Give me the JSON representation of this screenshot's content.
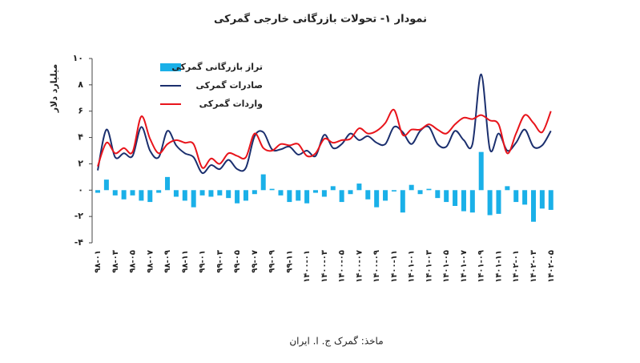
{
  "chart_data": {
    "type": "combo",
    "title": "نمودار ۱- تحولات بازرگانی خارجی گمرکی",
    "y_label": "میلیارد دلار",
    "source": "ماخذ: گمرک ج. ا. ایران",
    "categories": [
      "۹۸-۰۱",
      null,
      "۹۸-۰۳",
      null,
      "۹۸-۰۵",
      null,
      "۹۸-۰۷",
      null,
      "۹۸-۰۹",
      null,
      "۹۸-۱۱",
      null,
      "۹۹-۰۱",
      null,
      "۹۹-۰۳",
      null,
      "۹۹-۰۵",
      null,
      "۹۹-۰۷",
      null,
      "۹۹-۰۹",
      null,
      "۹۹-۱۱",
      null,
      "۱۴۰۰-۰۱",
      null,
      "۱۴۰۰-۰۳",
      null,
      "۱۴۰۰-۰۵",
      null,
      "۱۴۰۰-۰۷",
      null,
      "۱۴۰۰-۰۹",
      null,
      "۱۴۰۰-۱۱",
      null,
      "۱۴۰۱-۰۱",
      null,
      "۱۴۰۱-۰۳",
      null,
      "۱۴۰۱-۰۵",
      null,
      "۱۴۰۱-۰۷",
      null,
      "۱۴۰۱-۰۹",
      null,
      "۱۴۰۱-۱۱",
      null,
      "۱۴۰۲-۰۱",
      null,
      "۱۴۰۲-۰۳",
      null,
      "۱۴۰۲-۰۵"
    ],
    "series": [
      {
        "name": "تراز بازرگانی گمرکی",
        "kind": "bar",
        "color": "#1ab0e8",
        "values": [
          -0.2,
          0.8,
          -0.4,
          -0.7,
          -0.4,
          -0.8,
          -0.9,
          -0.2,
          1.0,
          -0.5,
          -0.8,
          -1.3,
          -0.4,
          -0.5,
          -0.4,
          -0.6,
          -1.0,
          -0.8,
          -0.3,
          1.2,
          0.1,
          -0.4,
          -0.9,
          -0.8,
          -1.0,
          -0.2,
          -0.5,
          0.3,
          -0.9,
          -0.3,
          0.5,
          -0.7,
          -1.3,
          -0.8,
          -0.1,
          -1.7,
          0.4,
          -0.3,
          0.1,
          -0.6,
          -0.9,
          -1.2,
          -1.6,
          -1.7,
          2.9,
          -1.9,
          -1.8,
          0.3,
          -0.9,
          -1.1,
          -2.4,
          -1.4,
          -1.5
        ]
      },
      {
        "name": "صادرات گمرکی",
        "kind": "line",
        "color": "#1b2f6e",
        "values": [
          1.5,
          4.6,
          2.5,
          2.8,
          2.6,
          4.8,
          3.0,
          2.5,
          4.5,
          3.4,
          2.8,
          2.5,
          1.3,
          1.9,
          1.6,
          2.3,
          1.6,
          1.7,
          4.1,
          4.4,
          3.1,
          3.1,
          3.3,
          2.7,
          3.0,
          2.6,
          4.2,
          3.2,
          3.5,
          4.3,
          3.8,
          4.1,
          3.6,
          3.5,
          4.8,
          4.4,
          3.5,
          4.5,
          4.8,
          3.5,
          3.3,
          4.5,
          3.8,
          3.5,
          8.8,
          3.1,
          4.3,
          3.0,
          3.6,
          4.6,
          3.3,
          3.4,
          4.5
        ]
      },
      {
        "name": "واردات گمرکی",
        "kind": "line",
        "color": "#e8141b",
        "values": [
          1.8,
          3.6,
          2.8,
          3.2,
          2.9,
          5.6,
          3.9,
          2.8,
          3.5,
          3.8,
          3.6,
          3.5,
          1.7,
          2.4,
          2.0,
          2.8,
          2.6,
          2.5,
          4.3,
          3.2,
          3.0,
          3.5,
          3.4,
          3.5,
          2.6,
          2.8,
          3.9,
          3.6,
          3.8,
          3.9,
          4.7,
          4.3,
          4.5,
          5.1,
          6.1,
          4.2,
          4.6,
          4.6,
          5.0,
          4.6,
          4.3,
          5.0,
          5.5,
          5.4,
          5.7,
          5.3,
          5.0,
          2.8,
          4.3,
          5.7,
          5.1,
          4.4,
          6.0
        ]
      }
    ],
    "ylim": [
      -4,
      10
    ],
    "yticks": [
      {
        "value": 10,
        "label": "۱۰"
      },
      {
        "value": 8,
        "label": "۸"
      },
      {
        "value": 6,
        "label": "۶"
      },
      {
        "value": 4,
        "label": "۴"
      },
      {
        "value": 2,
        "label": "۲"
      },
      {
        "value": 0,
        "label": "۰"
      },
      {
        "value": -2,
        "label": "-۲"
      },
      {
        "value": -4,
        "label": "-۴"
      }
    ],
    "grid": false
  }
}
